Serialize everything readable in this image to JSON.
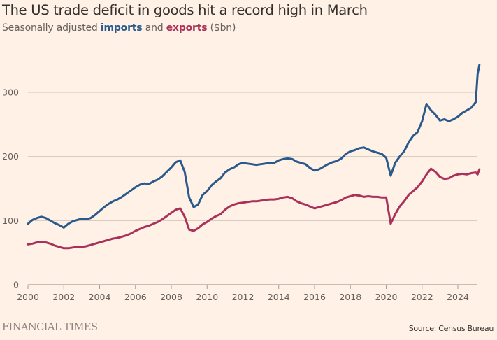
{
  "header": {
    "title": "The US trade deficit in goods hit a record high in March",
    "subtitle_prefix": "Seasonally adjusted ",
    "subtitle_imports": "imports",
    "subtitle_mid": " and ",
    "subtitle_exports": "exports",
    "subtitle_suffix": " ($bn)"
  },
  "footer": {
    "brand": "FINANCIAL TIMES",
    "source": "Source: Census Bureau"
  },
  "colors": {
    "background": "#fff1e5",
    "imports": "#2a5a8c",
    "exports": "#a8325a",
    "grid": "#d9cdc1",
    "axis": "#a69d96"
  },
  "chart_data": {
    "type": "line",
    "title": "The US trade deficit in goods hit a record high in March",
    "subtitle": "Seasonally adjusted imports and exports ($bn)",
    "xlabel": "",
    "ylabel": "$bn",
    "xlim": [
      2000,
      2025.25
    ],
    "ylim": [
      0,
      345
    ],
    "grid": true,
    "legend": "in-subtitle",
    "x_ticks": [
      2000,
      2002,
      2004,
      2006,
      2008,
      2010,
      2012,
      2014,
      2016,
      2018,
      2020,
      2022,
      2024
    ],
    "y_ticks": [
      0,
      100,
      200,
      300
    ],
    "x": [
      2000.0,
      2000.25,
      2000.5,
      2000.75,
      2001.0,
      2001.25,
      2001.5,
      2001.75,
      2002.0,
      2002.25,
      2002.5,
      2002.75,
      2003.0,
      2003.25,
      2003.5,
      2003.75,
      2004.0,
      2004.25,
      2004.5,
      2004.75,
      2005.0,
      2005.25,
      2005.5,
      2005.75,
      2006.0,
      2006.25,
      2006.5,
      2006.75,
      2007.0,
      2007.25,
      2007.5,
      2007.75,
      2008.0,
      2008.25,
      2008.5,
      2008.75,
      2009.0,
      2009.25,
      2009.5,
      2009.75,
      2010.0,
      2010.25,
      2010.5,
      2010.75,
      2011.0,
      2011.25,
      2011.5,
      2011.75,
      2012.0,
      2012.25,
      2012.5,
      2012.75,
      2013.0,
      2013.25,
      2013.5,
      2013.75,
      2014.0,
      2014.25,
      2014.5,
      2014.75,
      2015.0,
      2015.25,
      2015.5,
      2015.75,
      2016.0,
      2016.25,
      2016.5,
      2016.75,
      2017.0,
      2017.25,
      2017.5,
      2017.75,
      2018.0,
      2018.25,
      2018.5,
      2018.75,
      2019.0,
      2019.25,
      2019.5,
      2019.75,
      2020.0,
      2020.25,
      2020.5,
      2020.75,
      2021.0,
      2021.25,
      2021.5,
      2021.75,
      2022.0,
      2022.25,
      2022.5,
      2022.75,
      2023.0,
      2023.25,
      2023.5,
      2023.75,
      2024.0,
      2024.25,
      2024.5,
      2024.75,
      2025.0,
      2025.1,
      2025.2
    ],
    "series": [
      {
        "name": "imports",
        "values": [
          95,
          101,
          104,
          106,
          104,
          100,
          96,
          93,
          89,
          95,
          99,
          101,
          103,
          102,
          104,
          109,
          115,
          121,
          126,
          130,
          133,
          137,
          142,
          147,
          152,
          156,
          158,
          157,
          161,
          164,
          169,
          176,
          183,
          191,
          194,
          176,
          136,
          121,
          125,
          140,
          146,
          155,
          161,
          166,
          175,
          180,
          183,
          188,
          190,
          189,
          188,
          187,
          188,
          189,
          190,
          190,
          194,
          196,
          197,
          196,
          192,
          190,
          188,
          182,
          178,
          180,
          184,
          188,
          191,
          193,
          197,
          204,
          208,
          210,
          213,
          214,
          211,
          208,
          206,
          204,
          198,
          170,
          190,
          200,
          208,
          222,
          232,
          238,
          255,
          282,
          272,
          265,
          256,
          258,
          255,
          258,
          262,
          268,
          272,
          276,
          285,
          328,
          343
        ]
      },
      {
        "name": "exports",
        "values": [
          63,
          64,
          66,
          67,
          66,
          64,
          61,
          59,
          57,
          57,
          58,
          59,
          59,
          60,
          62,
          64,
          66,
          68,
          70,
          72,
          73,
          75,
          77,
          80,
          84,
          87,
          90,
          92,
          95,
          98,
          102,
          107,
          112,
          117,
          119,
          106,
          86,
          84,
          88,
          94,
          98,
          103,
          107,
          110,
          117,
          122,
          125,
          127,
          128,
          129,
          130,
          130,
          131,
          132,
          133,
          133,
          134,
          136,
          137,
          135,
          130,
          127,
          125,
          122,
          119,
          121,
          123,
          125,
          127,
          129,
          132,
          136,
          138,
          140,
          139,
          137,
          138,
          137,
          137,
          136,
          136,
          95,
          110,
          122,
          130,
          140,
          146,
          152,
          161,
          172,
          181,
          176,
          168,
          165,
          166,
          170,
          172,
          173,
          172,
          174,
          175,
          172,
          180
        ]
      }
    ]
  }
}
